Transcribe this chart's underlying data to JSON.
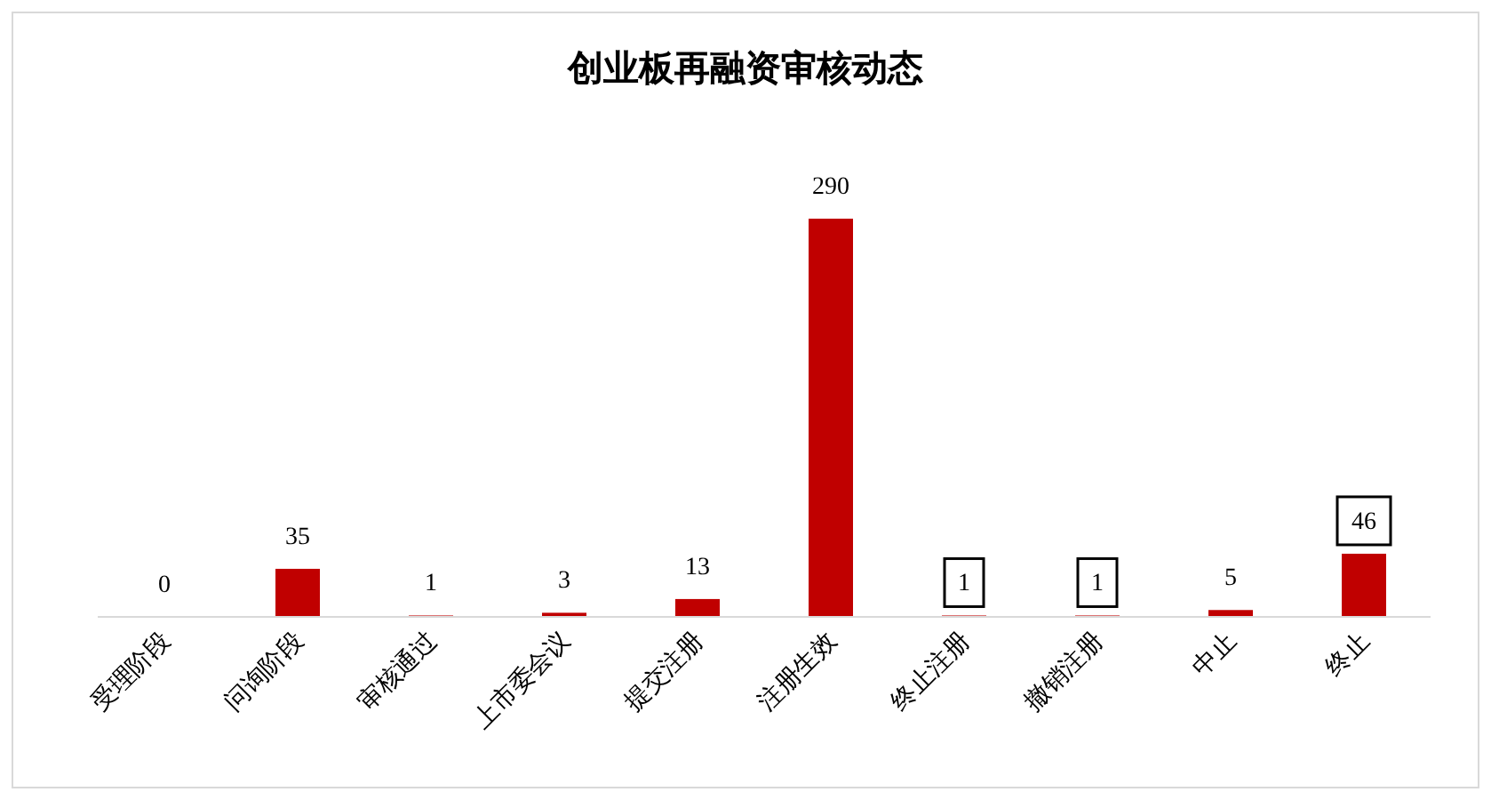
{
  "chart_data": {
    "type": "bar",
    "title": "创业板再融资审核动态",
    "categories": [
      "受理阶段",
      "问询阶段",
      "审核通过",
      "上市委会议",
      "提交注册",
      "注册生效",
      "终止注册",
      "撤销注册",
      "中止",
      "终止"
    ],
    "values": [
      0,
      35,
      1,
      3,
      13,
      290,
      1,
      1,
      5,
      46
    ],
    "color": "#c00000",
    "data_labels": true
  }
}
